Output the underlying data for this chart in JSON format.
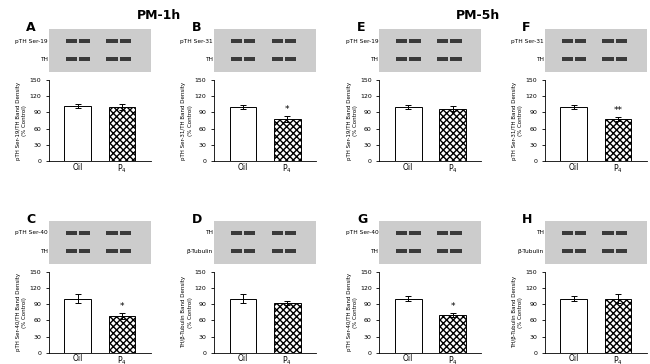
{
  "title_left": "PM-1h",
  "title_right": "PM-5h",
  "title_fontsize": 9,
  "panel_labels": [
    "A",
    "B",
    "C",
    "D",
    "E",
    "F",
    "G",
    "H"
  ],
  "blot_labels": {
    "A": [
      "pTH Ser-19",
      "TH"
    ],
    "B": [
      "pTH Ser-31",
      "TH"
    ],
    "C": [
      "pTH Ser-40",
      "TH"
    ],
    "D": [
      "TH",
      "β-Tubulin"
    ],
    "E": [
      "pTH Ser-19",
      "TH"
    ],
    "F": [
      "pTH Ser-31",
      "TH"
    ],
    "G": [
      "pTH Ser-40",
      "TH"
    ],
    "H": [
      "TH",
      "β-Tubulin"
    ]
  },
  "bar_data": {
    "A": {
      "oil": 102,
      "p4": 100,
      "oil_err": 4,
      "p4_err": 5,
      "sig": ""
    },
    "B": {
      "oil": 100,
      "p4": 78,
      "oil_err": 4,
      "p4_err": 5,
      "sig": "*"
    },
    "C": {
      "oil": 100,
      "p4": 68,
      "oil_err": 8,
      "p4_err": 5,
      "sig": "*"
    },
    "D": {
      "oil": 100,
      "p4": 92,
      "oil_err": 8,
      "p4_err": 3,
      "sig": ""
    },
    "E": {
      "oil": 100,
      "p4": 97,
      "oil_err": 4,
      "p4_err": 4,
      "sig": ""
    },
    "F": {
      "oil": 100,
      "p4": 78,
      "oil_err": 4,
      "p4_err": 3,
      "sig": "**"
    },
    "G": {
      "oil": 100,
      "p4": 70,
      "oil_err": 5,
      "p4_err": 4,
      "sig": "*"
    },
    "H": {
      "oil": 100,
      "p4": 100,
      "oil_err": 5,
      "p4_err": 8,
      "sig": ""
    }
  },
  "ylabels": {
    "A": "pTH Ser-19/TH Band Density\n(% Control)",
    "B": "pTH Ser-31/TH Band Density\n(% Control)",
    "C": "pTH Ser-40/TH Band Density\n(% Control)",
    "D": "TH/β-Tubulin Band Density\n(% Control)",
    "E": "pTH Ser-19/TH Band Density\n(% Control)",
    "F": "pTH Ser-31/TH Band Density\n(% Control)",
    "G": "pTH Ser-40/TH Band Density\n(% Control)",
    "H": "TH/β-Tubulin Band Density\n(% Control)"
  },
  "ylim": [
    0,
    150
  ],
  "yticks": [
    0,
    30,
    60,
    90,
    120,
    150
  ],
  "xtick_labels": [
    "Oil",
    "P$_4$"
  ],
  "background_color": "white"
}
